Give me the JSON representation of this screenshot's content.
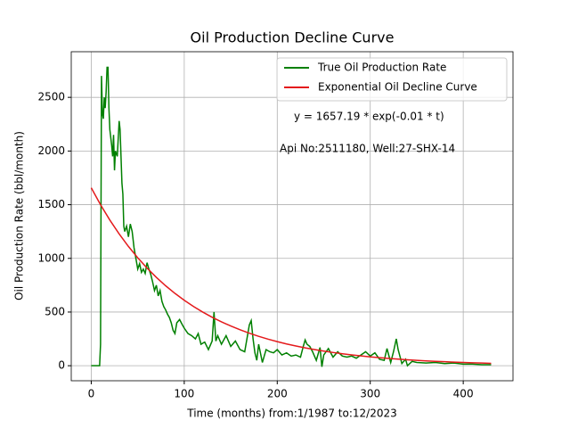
{
  "chart_data": {
    "type": "line",
    "title": "Oil Production Decline Curve",
    "x_label": "Time (months) from:1/1987 to:12/2023",
    "y_label": "Oil Production Rate (bbl/month)",
    "annotations": [
      "y = 1657.19 * exp(-0.01 * t)",
      "Api No:2511180, Well:27-SHX-14"
    ],
    "xlim": [
      -21.5,
      453.5
    ],
    "ylim": [
      -140,
      2925
    ],
    "xticks": [
      0,
      100,
      200,
      300,
      400
    ],
    "yticks": [
      0,
      500,
      1000,
      1500,
      2000,
      2500
    ],
    "grid": true,
    "legend": "upper right",
    "series": [
      {
        "name": "True Oil Production Rate",
        "color": "#008000",
        "x": [
          0,
          5,
          9,
          10,
          11,
          12,
          13,
          14,
          15,
          16,
          17,
          18,
          19,
          20,
          22,
          23,
          24,
          25,
          26,
          28,
          30,
          31,
          32,
          33,
          34,
          35,
          36,
          38,
          40,
          42,
          44,
          46,
          48,
          50,
          52,
          54,
          56,
          58,
          60,
          62,
          64,
          66,
          68,
          70,
          72,
          74,
          76,
          78,
          80,
          82,
          84,
          86,
          88,
          90,
          92,
          95,
          98,
          100,
          104,
          108,
          112,
          115,
          118,
          122,
          126,
          130,
          132,
          134,
          136,
          140,
          145,
          150,
          155,
          160,
          165,
          168,
          170,
          172,
          174,
          176,
          178,
          180,
          184,
          188,
          192,
          196,
          200,
          205,
          210,
          215,
          220,
          225,
          228,
          230,
          232,
          235,
          238,
          242,
          246,
          248,
          250,
          255,
          260,
          265,
          270,
          275,
          280,
          285,
          290,
          295,
          300,
          305,
          310,
          315,
          318,
          322,
          325,
          328,
          330,
          334,
          338,
          340,
          345,
          350,
          360,
          370,
          380,
          390,
          400,
          410,
          420,
          430
        ],
        "values": [
          0,
          0,
          0,
          200,
          2700,
          2350,
          2300,
          2500,
          2400,
          2550,
          2780,
          2780,
          2400,
          2200,
          2050,
          1950,
          2150,
          1820,
          2000,
          1950,
          2280,
          2200,
          1950,
          1700,
          1600,
          1300,
          1250,
          1300,
          1200,
          1320,
          1250,
          1100,
          1000,
          900,
          950,
          870,
          900,
          860,
          960,
          900,
          850,
          780,
          700,
          750,
          650,
          700,
          600,
          550,
          520,
          480,
          450,
          400,
          330,
          300,
          400,
          430,
          380,
          350,
          300,
          280,
          250,
          300,
          200,
          220,
          150,
          230,
          500,
          230,
          280,
          200,
          280,
          180,
          230,
          150,
          130,
          280,
          380,
          420,
          250,
          120,
          50,
          200,
          30,
          150,
          130,
          120,
          150,
          100,
          120,
          90,
          100,
          80,
          180,
          240,
          200,
          180,
          130,
          50,
          170,
          -10,
          100,
          160,
          80,
          130,
          90,
          80,
          90,
          70,
          100,
          130,
          90,
          120,
          60,
          50,
          160,
          30,
          130,
          250,
          150,
          20,
          60,
          0,
          40,
          30,
          25,
          30,
          20,
          25,
          15,
          15,
          10,
          10
        ]
      },
      {
        "name": "Exponential Oil Decline Curve",
        "color": "#e41a1c",
        "x": [
          0,
          10,
          20,
          30,
          40,
          50,
          60,
          70,
          80,
          90,
          100,
          110,
          120,
          130,
          140,
          150,
          160,
          170,
          180,
          190,
          200,
          210,
          220,
          230,
          240,
          250,
          260,
          270,
          280,
          290,
          300,
          310,
          320,
          330,
          340,
          350,
          360,
          370,
          380,
          390,
          400,
          410,
          420,
          430
        ],
        "values": [
          1657.19,
          1499.5,
          1356.8,
          1227.7,
          1110.9,
          1005.2,
          909.5,
          822.9,
          744.6,
          673.8,
          609.6,
          551.6,
          499.1,
          451.6,
          408.6,
          369.8,
          334.6,
          302.7,
          273.9,
          247.9,
          224.3,
          202.9,
          183.6,
          166.1,
          150.3,
          136.0,
          123.1,
          111.4,
          100.8,
          91.2,
          82.5,
          74.7,
          67.5,
          61.1,
          55.3,
          50.0,
          45.3,
          41.0,
          37.1,
          33.5,
          30.4,
          27.5,
          24.8,
          22.5
        ]
      }
    ]
  }
}
